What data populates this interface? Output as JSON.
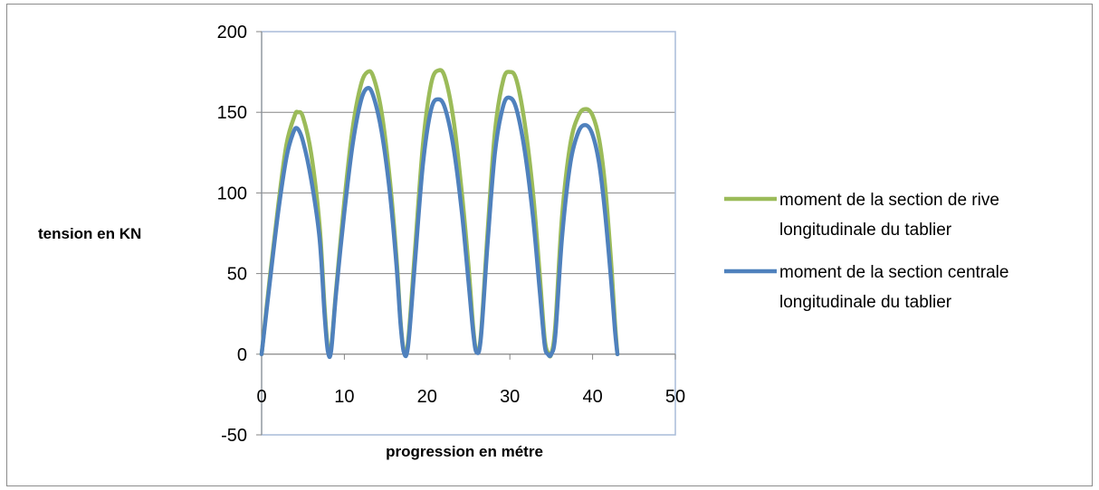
{
  "chart_data": {
    "type": "line",
    "title": "",
    "xlabel": "progression en métre",
    "ylabel": "tension en KN",
    "xlim": [
      0,
      50
    ],
    "ylim": [
      -50,
      200
    ],
    "xticks": [
      0,
      10,
      20,
      30,
      40,
      50
    ],
    "yticks": [
      -50,
      0,
      50,
      100,
      150,
      200
    ],
    "grid": "horizontal",
    "legend_position": "right",
    "series": [
      {
        "name": "moment de la section de rive longitudinale du tablier",
        "color": "#9BBB59",
        "points": [
          [
            0,
            0
          ],
          [
            1,
            48
          ],
          [
            2,
            92
          ],
          [
            3,
            130
          ],
          [
            4,
            148
          ],
          [
            4.4,
            150
          ],
          [
            5,
            147
          ],
          [
            6,
            124
          ],
          [
            7,
            80
          ],
          [
            7.6,
            30
          ],
          [
            8,
            4
          ],
          [
            8.4,
            4
          ],
          [
            9,
            40
          ],
          [
            10,
            95
          ],
          [
            11,
            140
          ],
          [
            12,
            167
          ],
          [
            12.8,
            175
          ],
          [
            13.5,
            172
          ],
          [
            14.5,
            150
          ],
          [
            15.5,
            108
          ],
          [
            16.3,
            60
          ],
          [
            16.8,
            20
          ],
          [
            17.2,
            2
          ],
          [
            17.7,
            8
          ],
          [
            18.5,
            62
          ],
          [
            19.5,
            130
          ],
          [
            20.5,
            168
          ],
          [
            21.4,
            176
          ],
          [
            22.2,
            171
          ],
          [
            23.2,
            145
          ],
          [
            24.2,
            100
          ],
          [
            25,
            55
          ],
          [
            25.6,
            15
          ],
          [
            26,
            2
          ],
          [
            26.5,
            12
          ],
          [
            27.3,
            75
          ],
          [
            28.2,
            138
          ],
          [
            29.2,
            170
          ],
          [
            30,
            175
          ],
          [
            30.8,
            170
          ],
          [
            31.8,
            143
          ],
          [
            32.8,
            100
          ],
          [
            33.6,
            50
          ],
          [
            34.2,
            10
          ],
          [
            34.6,
            1
          ],
          [
            35,
            0
          ],
          [
            35.5,
            18
          ],
          [
            36.3,
            85
          ],
          [
            37.3,
            130
          ],
          [
            38.3,
            148
          ],
          [
            39.2,
            152
          ],
          [
            40,
            148
          ],
          [
            40.8,
            133
          ],
          [
            41.5,
            105
          ],
          [
            42.2,
            60
          ],
          [
            42.7,
            20
          ],
          [
            43,
            0
          ]
        ]
      },
      {
        "name": "moment de la section centrale longitudinale du tablier",
        "color": "#4F81BD",
        "points": [
          [
            0,
            0
          ],
          [
            1,
            45
          ],
          [
            2,
            88
          ],
          [
            3,
            122
          ],
          [
            3.8,
            137
          ],
          [
            4.3,
            140
          ],
          [
            5,
            132
          ],
          [
            6,
            108
          ],
          [
            7,
            72
          ],
          [
            7.6,
            25
          ],
          [
            8,
            2
          ],
          [
            8.4,
            2
          ],
          [
            9,
            38
          ],
          [
            10,
            88
          ],
          [
            11,
            130
          ],
          [
            12,
            157
          ],
          [
            12.8,
            165
          ],
          [
            13.5,
            160
          ],
          [
            14.5,
            138
          ],
          [
            15.5,
            100
          ],
          [
            16.3,
            55
          ],
          [
            16.8,
            18
          ],
          [
            17.2,
            1
          ],
          [
            17.7,
            5
          ],
          [
            18.5,
            55
          ],
          [
            19.5,
            118
          ],
          [
            20.5,
            152
          ],
          [
            21.4,
            158
          ],
          [
            22.2,
            152
          ],
          [
            23.2,
            128
          ],
          [
            24.2,
            88
          ],
          [
            25,
            45
          ],
          [
            25.6,
            12
          ],
          [
            26,
            1
          ],
          [
            26.5,
            10
          ],
          [
            27.3,
            68
          ],
          [
            28.2,
            125
          ],
          [
            29.2,
            154
          ],
          [
            30,
            159
          ],
          [
            30.8,
            152
          ],
          [
            31.8,
            126
          ],
          [
            32.8,
            85
          ],
          [
            33.6,
            40
          ],
          [
            34.2,
            6
          ],
          [
            34.6,
            0
          ],
          [
            35,
            0
          ],
          [
            35.5,
            12
          ],
          [
            36.3,
            72
          ],
          [
            37.3,
            118
          ],
          [
            38.3,
            138
          ],
          [
            39.2,
            142
          ],
          [
            40,
            136
          ],
          [
            40.8,
            118
          ],
          [
            41.5,
            88
          ],
          [
            42.2,
            48
          ],
          [
            42.7,
            15
          ],
          [
            43,
            0
          ]
        ]
      }
    ]
  }
}
